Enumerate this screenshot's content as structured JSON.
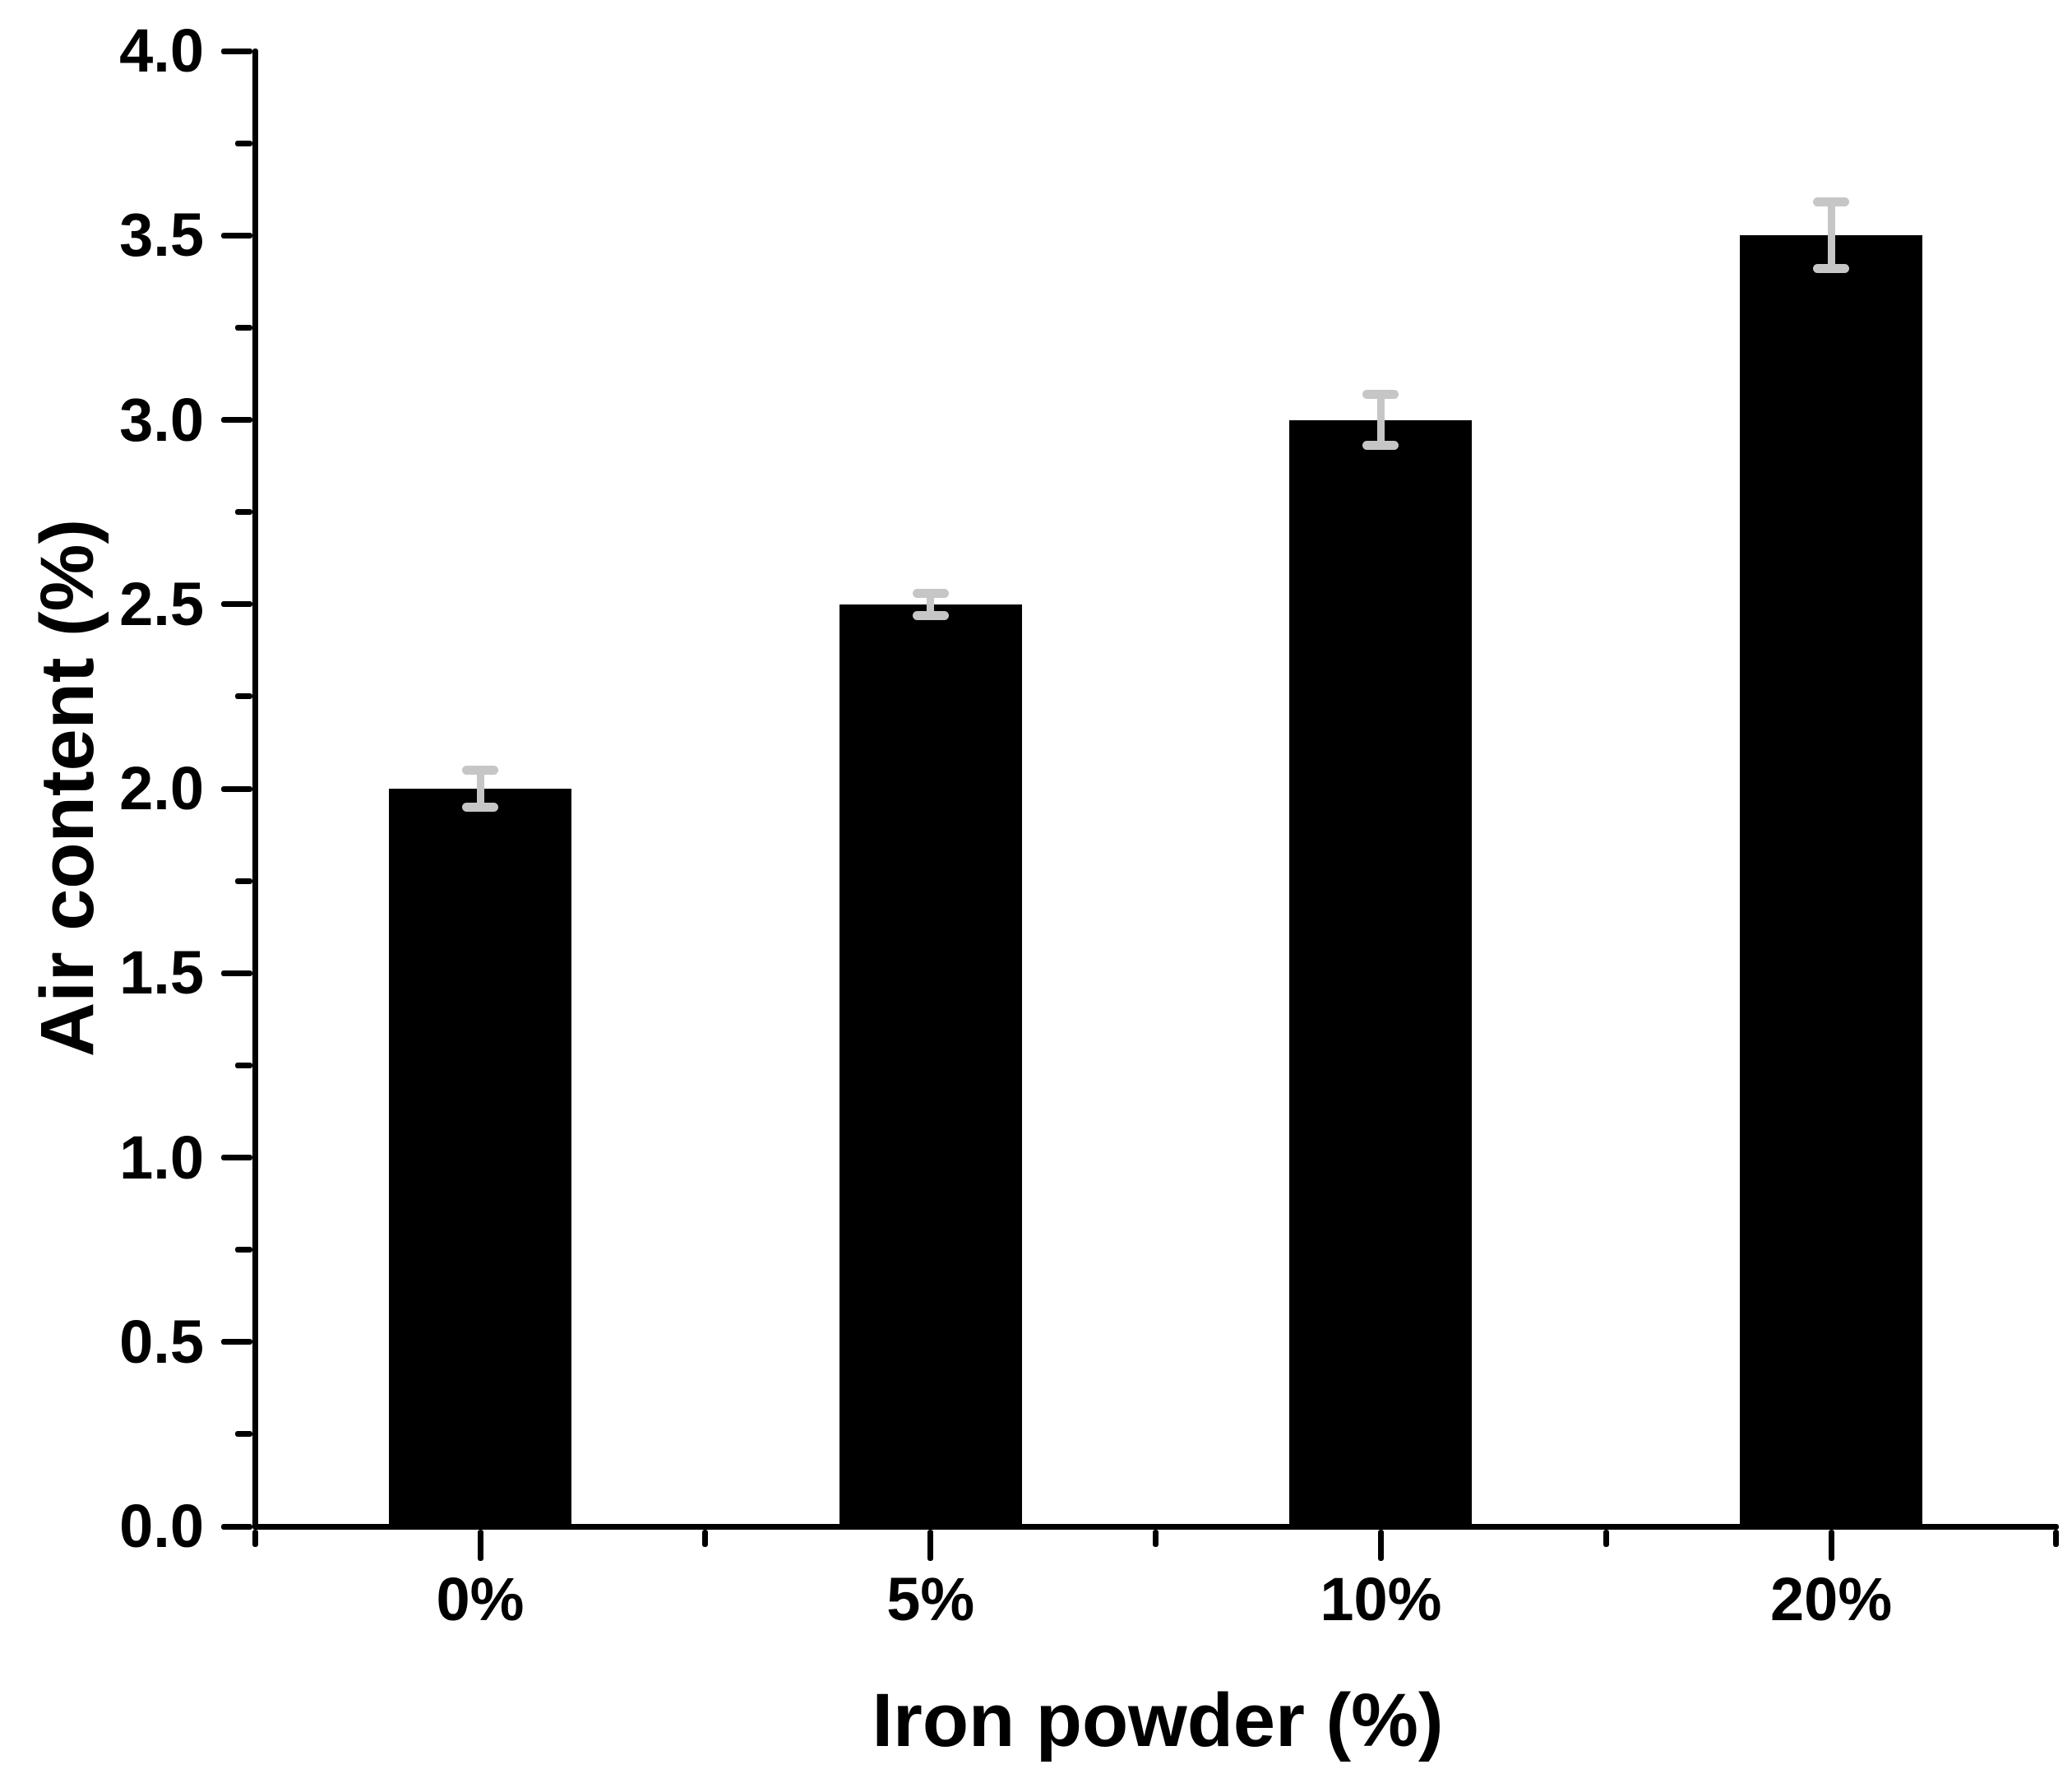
{
  "chart_data": {
    "type": "bar",
    "title": "",
    "categories": [
      "0%",
      "5%",
      "10%",
      "20%"
    ],
    "values": [
      2.0,
      2.5,
      3.0,
      3.5
    ],
    "errors": [
      0.05,
      0.03,
      0.07,
      0.09
    ],
    "xlabel": "Iron powder (%)",
    "ylabel": "Air content (%)",
    "ylim": [
      0.0,
      4.0
    ],
    "y_major_step": 0.5,
    "y_minor_step": 0.25,
    "y_tick_labels": [
      "0.0",
      "0.5",
      "1.0",
      "1.5",
      "2.0",
      "2.5",
      "3.0",
      "3.5",
      "4.0"
    ],
    "grid": false,
    "legend": false,
    "bar_color": "#000000",
    "error_bar_color": "#c6c6c6",
    "axis_color": "#000000",
    "text_color": "#000000",
    "background_color": "#ffffff"
  }
}
